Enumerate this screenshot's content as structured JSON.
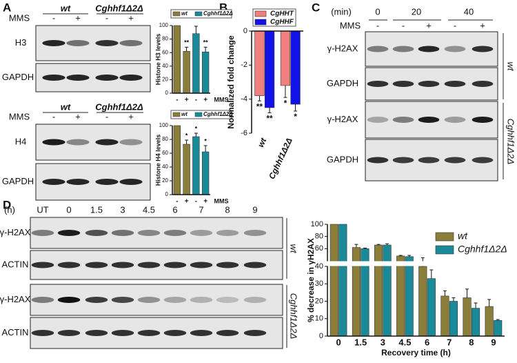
{
  "panel_labels": [
    "A",
    "B",
    "C",
    "D"
  ],
  "blot_a": {
    "genotypes": [
      "wt",
      "Cghhf1Δ2Δ"
    ],
    "treatment_label": "MMS",
    "treatments": [
      "-",
      "+",
      "-",
      "+"
    ],
    "top_rows": [
      "H3",
      "GAPDH"
    ],
    "bottom_rows": [
      "H4",
      "GAPDH"
    ]
  },
  "blot_c": {
    "unit": "(min)",
    "times": [
      "0",
      "20",
      "40"
    ],
    "treatment_label": "MMS",
    "treatments": [
      "-",
      "-",
      "+",
      "-",
      "+"
    ],
    "rows": [
      "γ-H2AX",
      "GAPDH",
      "γ-H2AX",
      "GAPDH"
    ],
    "genotypes": [
      "wt",
      "Cghhf1Δ2Δ"
    ]
  },
  "blot_d": {
    "unit": "(h)",
    "times": [
      "UT",
      "0",
      "1.5",
      "3",
      "4.5",
      "6",
      "7",
      "8",
      "9"
    ],
    "rows": [
      "γ-H2AX",
      "ACTIN",
      "γ-H2AX",
      "ACTIN"
    ],
    "genotypes": [
      "wt",
      "Cghhf1Δ2Δ"
    ]
  },
  "chart_data": [
    {
      "type": "bar",
      "ylabel": "Histone H3 levels",
      "xlabel": "MMS",
      "categories": [
        "-",
        "+",
        "-",
        "+"
      ],
      "series": [
        {
          "name": "wt",
          "color": "#8b7d3a",
          "values": [
            100,
            62,
            null,
            null
          ],
          "errors": [
            null,
            6,
            null,
            null
          ]
        },
        {
          "name": "Cghhf1Δ2Δ",
          "color": "#1a8a98",
          "values": [
            null,
            null,
            88,
            61
          ],
          "errors": [
            null,
            null,
            11,
            7
          ]
        }
      ],
      "annotations": [
        null,
        "**",
        null,
        "**"
      ],
      "ylim": [
        0,
        100
      ],
      "yticks": [
        0,
        20,
        40,
        60,
        80,
        100
      ]
    },
    {
      "type": "bar",
      "ylabel": "Histone H4 levels",
      "xlabel": "MMS",
      "categories": [
        "-",
        "+",
        "-",
        "+"
      ],
      "series": [
        {
          "name": "wt",
          "color": "#8b7d3a",
          "values": [
            100,
            73,
            null,
            null
          ],
          "errors": [
            null,
            6,
            null,
            null
          ]
        },
        {
          "name": "Cghhf1Δ2Δ",
          "color": "#1a8a98",
          "values": [
            null,
            null,
            84,
            62
          ],
          "errors": [
            null,
            null,
            5,
            9
          ]
        }
      ],
      "annotations": [
        null,
        "*",
        "*",
        "*"
      ],
      "ylim": [
        0,
        100
      ],
      "yticks": [
        0,
        20,
        40,
        60,
        80,
        100
      ]
    },
    {
      "type": "bar",
      "ylabel": "Normalized fold change",
      "categories": [
        "wt",
        "Cghhf1Δ2Δ"
      ],
      "series": [
        {
          "name": "CgHHT",
          "color": "#f08080",
          "values": [
            -3.8,
            -3.2
          ],
          "errors": [
            0.3,
            0.7
          ],
          "annotations": [
            "**",
            "*"
          ]
        },
        {
          "name": "CgHHF",
          "color": "#1212e8",
          "values": [
            -4.5,
            -4.3
          ],
          "errors": [
            0.3,
            0.4
          ],
          "annotations": [
            "**",
            "*"
          ]
        }
      ],
      "ylim": [
        -6,
        0
      ],
      "yticks": [
        -6,
        -4,
        -2,
        0
      ]
    },
    {
      "type": "bar",
      "ylabel": "% decrease in γH2AX",
      "xlabel": "Recovery time (h)",
      "categories": [
        "0",
        "1.5",
        "3",
        "4.5",
        "6",
        "7",
        "8",
        "9"
      ],
      "series": [
        {
          "name": "wt",
          "color": "#8b7d3a",
          "values": [
            100,
            62,
            66,
            48,
            40,
            23,
            22,
            17
          ],
          "errors": [
            null,
            5,
            1,
            1,
            5,
            3,
            5,
            4
          ]
        },
        {
          "name": "Cghhf1Δ2Δ",
          "color": "#1a8a98",
          "values": [
            100,
            60,
            66,
            47,
            33,
            20,
            16,
            9
          ],
          "errors": [
            null,
            1,
            2,
            2,
            5,
            2,
            3,
            0.5
          ]
        }
      ],
      "ylim": [
        0,
        100
      ],
      "yticks": [
        0,
        10,
        20,
        30,
        40,
        60,
        80,
        100
      ],
      "y_break": 40
    }
  ]
}
